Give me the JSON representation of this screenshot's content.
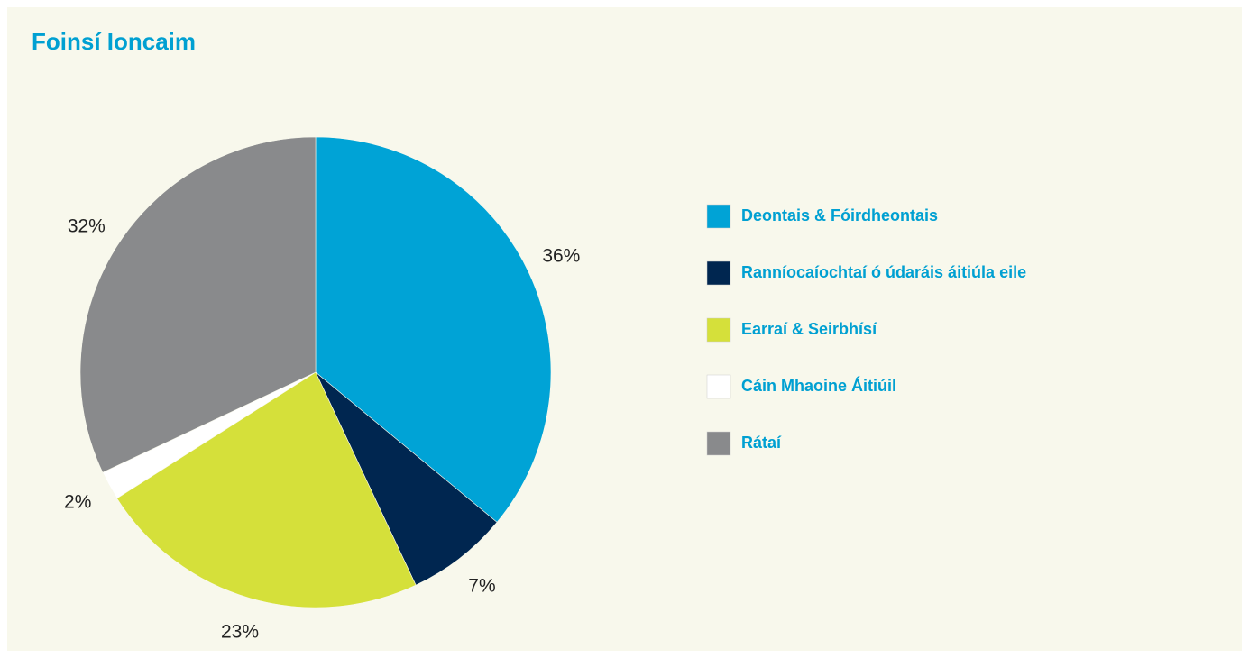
{
  "chart_data": {
    "type": "pie",
    "title": "Foinsí Ioncaim",
    "categories": [
      "Deontais & Fóirdheontais",
      "Ranníocaíochtaí ó údaráis áitiúla eile",
      "Earraí & Seirbhísí",
      "Cáin Mhaoine Áitiúil",
      "Rátaí"
    ],
    "values": [
      36,
      7,
      23,
      2,
      32
    ],
    "value_labels": [
      "36%",
      "7%",
      "23%",
      "2%",
      "32%"
    ],
    "colors": [
      "#00a3d6",
      "#002650",
      "#d5e03a",
      "#ffffff",
      "#898a8c"
    ],
    "legend": "right"
  }
}
